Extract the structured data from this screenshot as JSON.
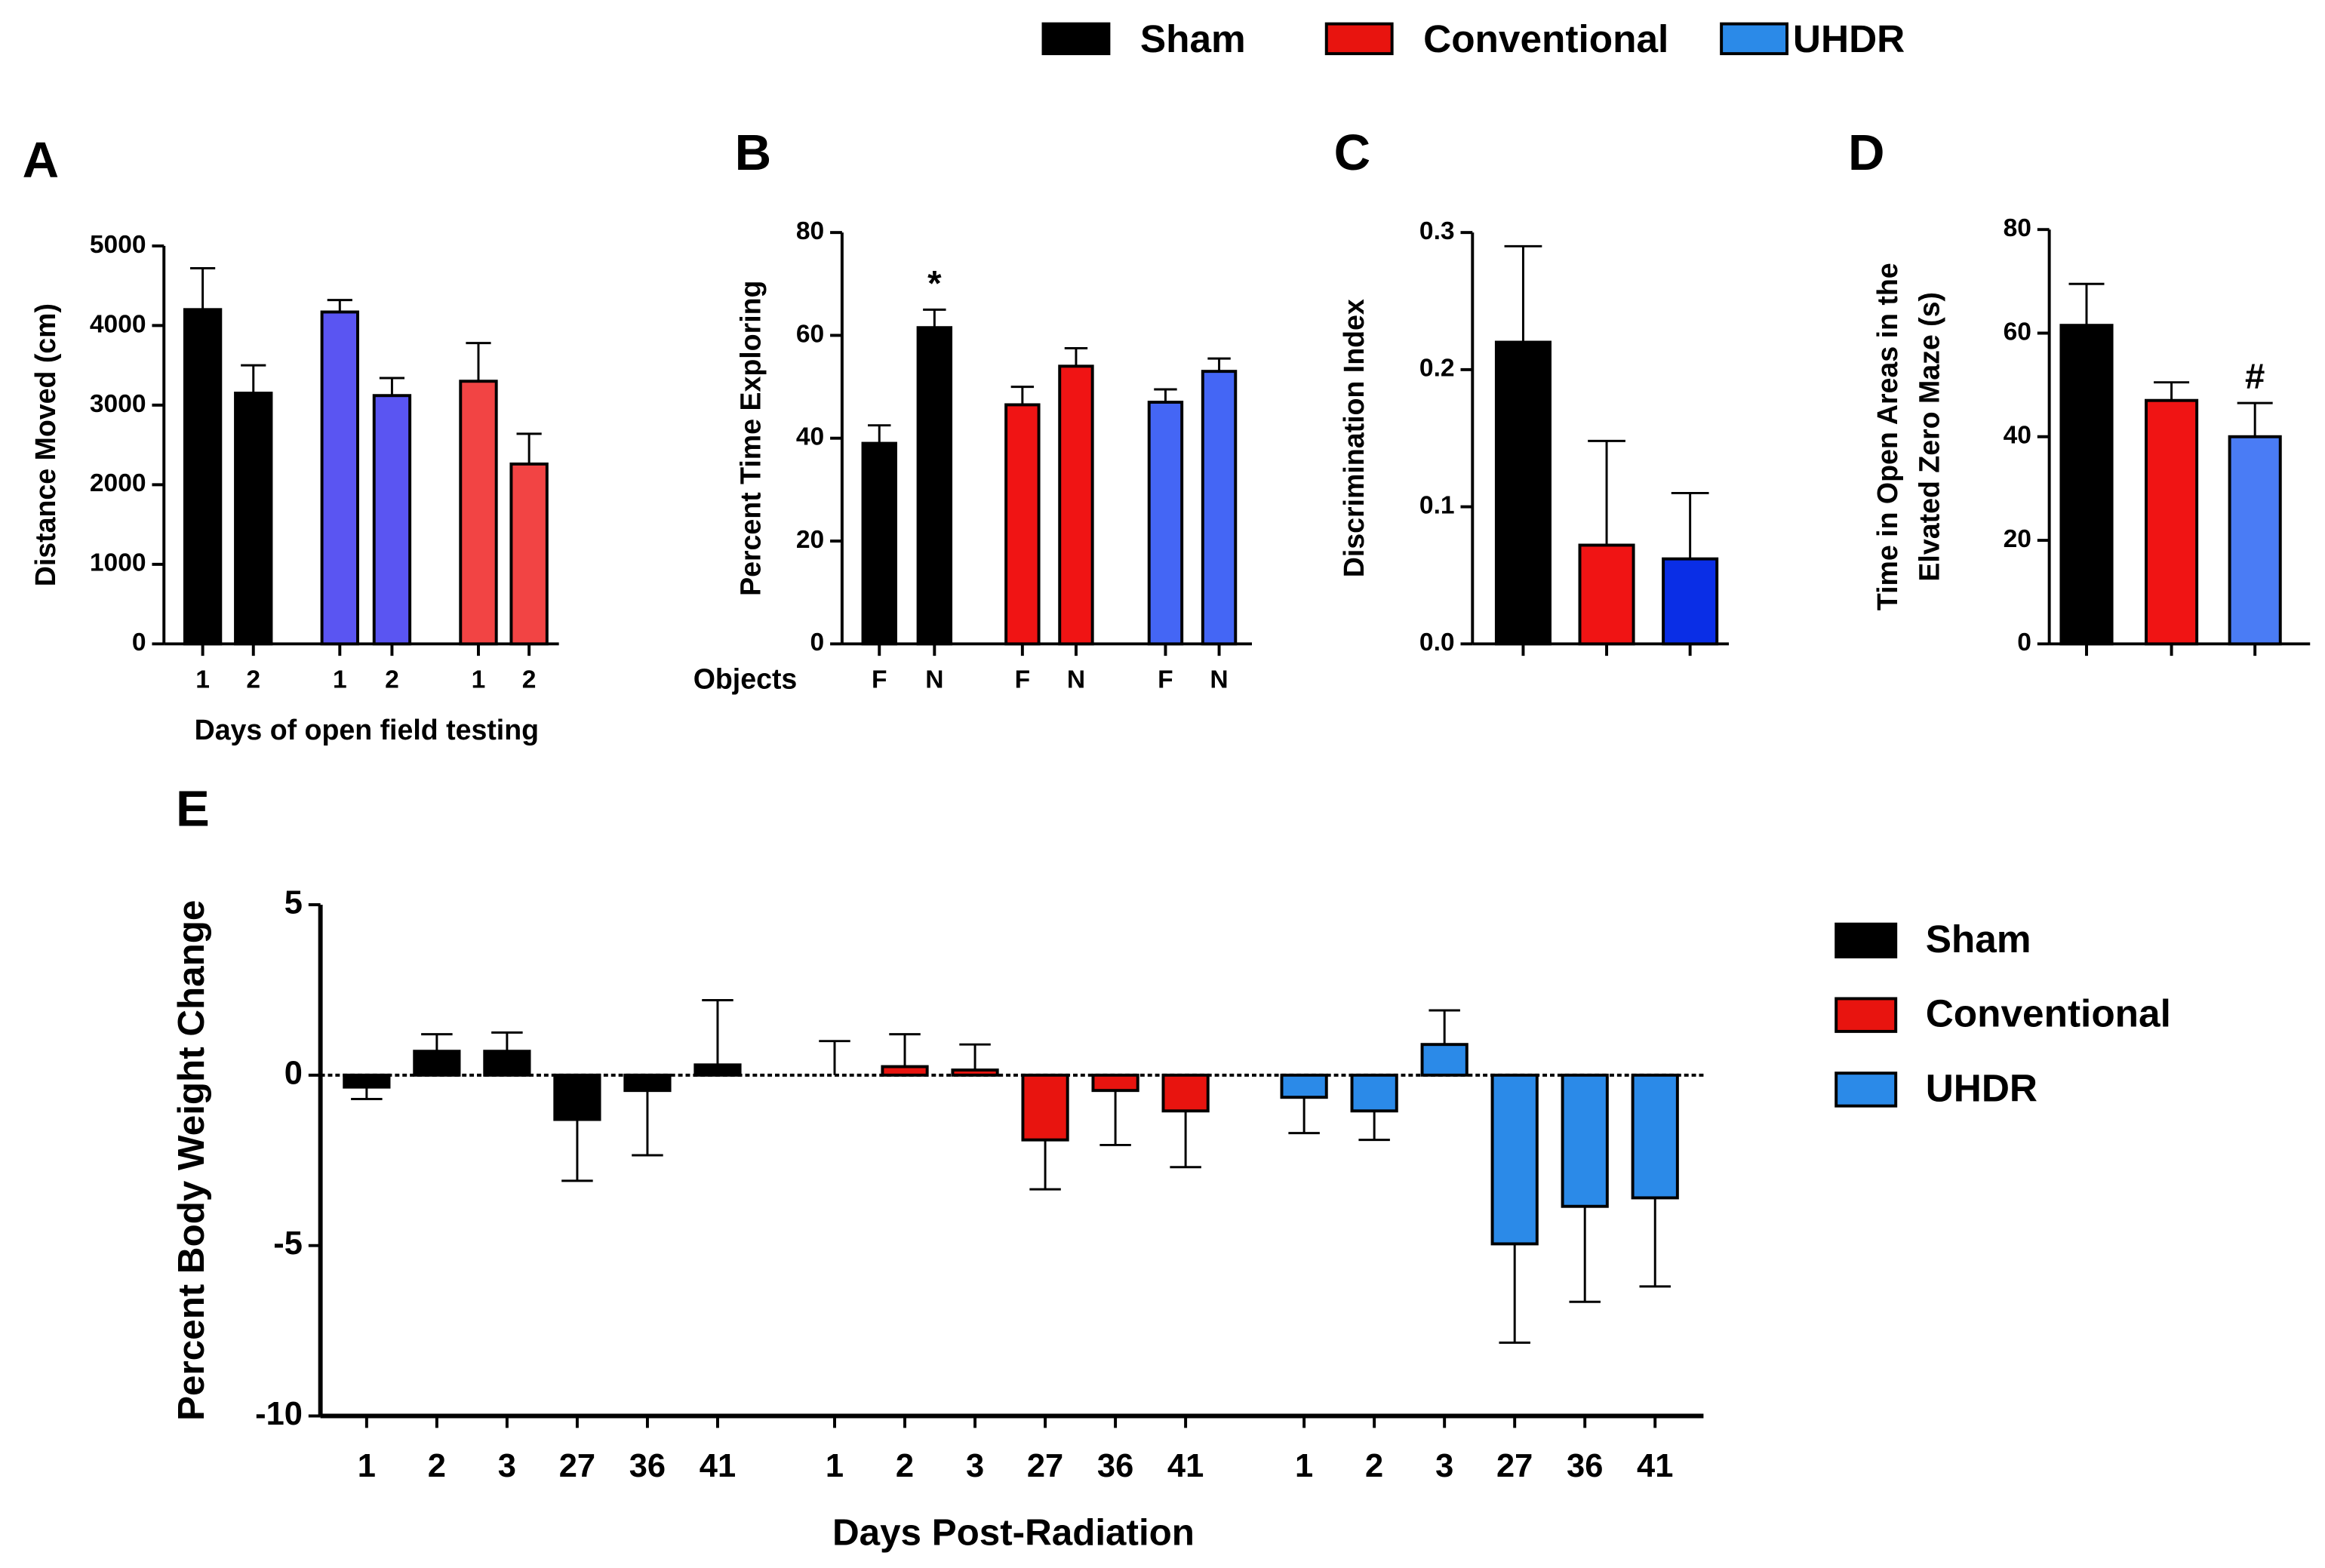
{
  "chart_data": [
    {
      "type": "bar",
      "panel": "A",
      "ylabel": "Distance Moved (cm)",
      "xlabel": "Days of open field testing",
      "categories": [
        "1",
        "2"
      ],
      "series": [
        {
          "color": "#000000",
          "values": [
            4200,
            3150
          ],
          "errors": [
            520,
            350
          ]
        },
        {
          "color": "#5a55f2",
          "values": [
            4170,
            3120
          ],
          "errors": [
            150,
            220
          ]
        },
        {
          "color": "#f24444",
          "values": [
            3300,
            2260
          ],
          "errors": [
            480,
            380
          ]
        }
      ],
      "ylim": [
        0,
        5000
      ],
      "yticks": [
        0,
        1000,
        2000,
        3000,
        4000,
        5000
      ]
    },
    {
      "type": "bar",
      "panel": "B",
      "ylabel": "Percent Time Exploring",
      "xlabel": "Objects",
      "categories": [
        "F",
        "N"
      ],
      "series": [
        {
          "color": "#000000",
          "values": [
            39,
            61.5
          ],
          "errors": [
            3.5,
            3.5
          ]
        },
        {
          "color": "#f01414",
          "values": [
            46.5,
            54
          ],
          "errors": [
            3.5,
            3.5
          ]
        },
        {
          "color": "#4466f5",
          "values": [
            47,
            53
          ],
          "errors": [
            2.5,
            2.5
          ]
        }
      ],
      "annotation": "*",
      "ylim": [
        0,
        80
      ],
      "yticks": [
        0,
        20,
        40,
        60,
        80
      ]
    },
    {
      "type": "bar",
      "panel": "C",
      "ylabel": "Discrimination Index",
      "values": [
        0.22,
        0.072,
        0.062
      ],
      "errors": [
        0.07,
        0.076,
        0.048
      ],
      "colors": [
        "#000000",
        "#f01414",
        "#0a2ee6"
      ],
      "ylim": [
        0,
        0.3
      ],
      "yticks": [
        {
          "value": 0,
          "label": "0.0"
        },
        0.1,
        0.2,
        0.3
      ]
    },
    {
      "type": "bar",
      "panel": "D",
      "ylabel": [
        "Time in Open Areas in the",
        "Elvated Zero Maze (s)"
      ],
      "values": [
        61.5,
        47,
        40
      ],
      "errors": [
        8,
        3.5,
        6.5
      ],
      "colors": [
        "#000000",
        "#f01414",
        "#4a7cf5"
      ],
      "annotation": "#",
      "ylim": [
        0,
        80
      ],
      "yticks": [
        0,
        20,
        40,
        60,
        80
      ]
    },
    {
      "type": "bar",
      "panel": "E",
      "ylabel": "Percent Body Weight Change",
      "xlabel": "Days Post-Radiation",
      "categories": [
        "1",
        "2",
        "3",
        "27",
        "36",
        "41"
      ],
      "series": [
        {
          "name": "Sham",
          "color": "#000000",
          "values": [
            -0.35,
            0.7,
            0.7,
            -1.3,
            -0.45,
            0.3
          ],
          "errors": [
            0.35,
            0.5,
            0.55,
            1.8,
            1.9,
            1.9
          ]
        },
        {
          "name": "Conventional",
          "color": "#e8140f",
          "values": [
            0,
            0.25,
            0.15,
            -1.9,
            -0.45,
            -1.05
          ],
          "errors": [
            1,
            0.95,
            0.75,
            1.45,
            1.6,
            1.65
          ]
        },
        {
          "name": "UHDR",
          "color": "#2b8ae8",
          "values": [
            -0.65,
            -1.05,
            0.9,
            -4.95,
            -3.85,
            -3.6
          ],
          "errors": [
            1.05,
            0.85,
            1.0,
            2.9,
            2.8,
            2.6
          ]
        }
      ],
      "ylim": [
        -10,
        5
      ],
      "yticks": [
        -10,
        -5,
        0,
        5
      ]
    }
  ]
}
